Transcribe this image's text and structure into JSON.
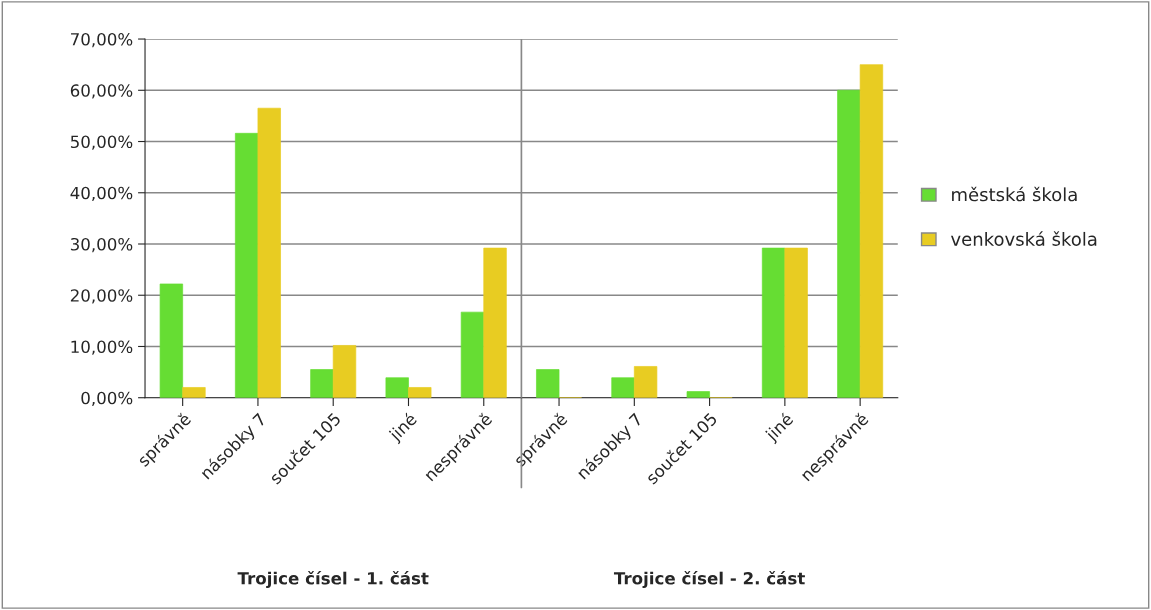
{
  "chart_data": {
    "type": "bar",
    "categories": [
      "správně",
      "násobky 7",
      "součet 105",
      "jiné",
      "nesprávně",
      "správně",
      "násobky 7",
      "součet 105",
      "jiné",
      "nesprávně"
    ],
    "series": [
      {
        "name": "městská škola",
        "color": "#66dd33",
        "values": [
          22.2,
          51.6,
          5.5,
          3.9,
          16.7,
          5.5,
          3.9,
          1.2,
          29.2,
          60.0
        ]
      },
      {
        "name": "venkovská škola",
        "color": "#e8cc22",
        "values": [
          2.0,
          56.5,
          10.2,
          2.0,
          29.2,
          0,
          6.1,
          0,
          29.2,
          65.0
        ]
      }
    ],
    "ylim": [
      0,
      70
    ],
    "yticks": [
      {
        "value": 0,
        "label": "0,00%"
      },
      {
        "value": 10,
        "label": "10,00%"
      },
      {
        "value": 20,
        "label": "20,00%"
      },
      {
        "value": 30,
        "label": "30,00%"
      },
      {
        "value": 40,
        "label": "40,00%"
      },
      {
        "value": 50,
        "label": "50,00%"
      },
      {
        "value": 60,
        "label": "60,00%"
      },
      {
        "value": 70,
        "label": "70,00%"
      }
    ],
    "grid": "y",
    "legend": "right",
    "annotations": [
      "Trojice čísel - 1. část",
      "Trojice čísel - 2. část"
    ]
  }
}
